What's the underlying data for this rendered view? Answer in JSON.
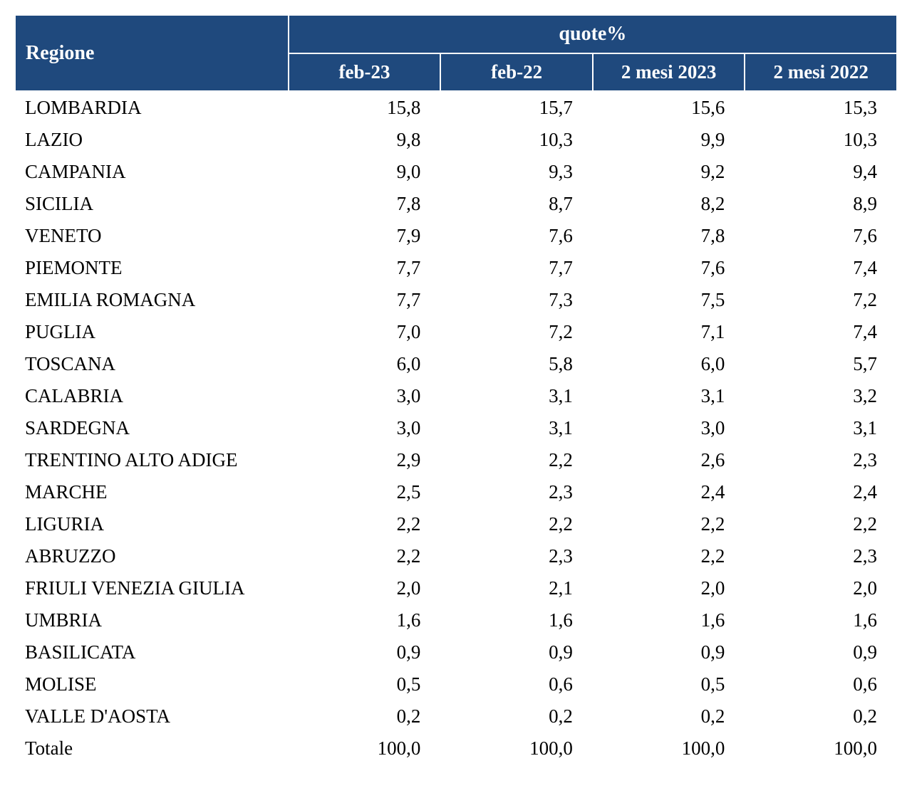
{
  "table": {
    "type": "table",
    "header_bg_color": "#1f497d",
    "header_text_color": "#ffffff",
    "body_text_color": "#000000",
    "background_color": "#ffffff",
    "header_border_color": "#ffffff",
    "header_font_weight": "bold",
    "header_fontsize": 28,
    "body_fontsize": 27,
    "region_header": "Regione",
    "quote_header": "quote%",
    "columns": [
      "feb-23",
      "feb-22",
      "2 mesi 2023",
      "2 mesi 2022"
    ],
    "column_widths_pct": [
      31,
      17.25,
      17.25,
      17.25,
      17.25
    ],
    "value_alignment": "right",
    "region_alignment": "left",
    "rows": [
      {
        "region": "LOMBARDIA",
        "values": [
          "15,8",
          "15,7",
          "15,6",
          "15,3"
        ]
      },
      {
        "region": "LAZIO",
        "values": [
          "9,8",
          "10,3",
          "9,9",
          "10,3"
        ]
      },
      {
        "region": "CAMPANIA",
        "values": [
          "9,0",
          "9,3",
          "9,2",
          "9,4"
        ]
      },
      {
        "region": "SICILIA",
        "values": [
          "7,8",
          "8,7",
          "8,2",
          "8,9"
        ]
      },
      {
        "region": "VENETO",
        "values": [
          "7,9",
          "7,6",
          "7,8",
          "7,6"
        ]
      },
      {
        "region": "PIEMONTE",
        "values": [
          "7,7",
          "7,7",
          "7,6",
          "7,4"
        ]
      },
      {
        "region": "EMILIA ROMAGNA",
        "values": [
          "7,7",
          "7,3",
          "7,5",
          "7,2"
        ]
      },
      {
        "region": "PUGLIA",
        "values": [
          "7,0",
          "7,2",
          "7,1",
          "7,4"
        ]
      },
      {
        "region": "TOSCANA",
        "values": [
          "6,0",
          "5,8",
          "6,0",
          "5,7"
        ]
      },
      {
        "region": "CALABRIA",
        "values": [
          "3,0",
          "3,1",
          "3,1",
          "3,2"
        ]
      },
      {
        "region": "SARDEGNA",
        "values": [
          "3,0",
          "3,1",
          "3,0",
          "3,1"
        ]
      },
      {
        "region": "TRENTINO ALTO ADIGE",
        "values": [
          "2,9",
          "2,2",
          "2,6",
          "2,3"
        ]
      },
      {
        "region": "MARCHE",
        "values": [
          "2,5",
          "2,3",
          "2,4",
          "2,4"
        ]
      },
      {
        "region": "LIGURIA",
        "values": [
          "2,2",
          "2,2",
          "2,2",
          "2,2"
        ]
      },
      {
        "region": "ABRUZZO",
        "values": [
          "2,2",
          "2,3",
          "2,2",
          "2,3"
        ]
      },
      {
        "region": "FRIULI VENEZIA GIULIA",
        "values": [
          "2,0",
          "2,1",
          "2,0",
          "2,0"
        ]
      },
      {
        "region": "UMBRIA",
        "values": [
          "1,6",
          "1,6",
          "1,6",
          "1,6"
        ]
      },
      {
        "region": "BASILICATA",
        "values": [
          "0,9",
          "0,9",
          "0,9",
          "0,9"
        ]
      },
      {
        "region": "MOLISE",
        "values": [
          "0,5",
          "0,6",
          "0,5",
          "0,6"
        ]
      },
      {
        "region": "VALLE D'AOSTA",
        "values": [
          "0,2",
          "0,2",
          "0,2",
          "0,2"
        ]
      }
    ],
    "total_row": {
      "region": "Totale",
      "values": [
        "100,0",
        "100,0",
        "100,0",
        "100,0"
      ]
    }
  }
}
